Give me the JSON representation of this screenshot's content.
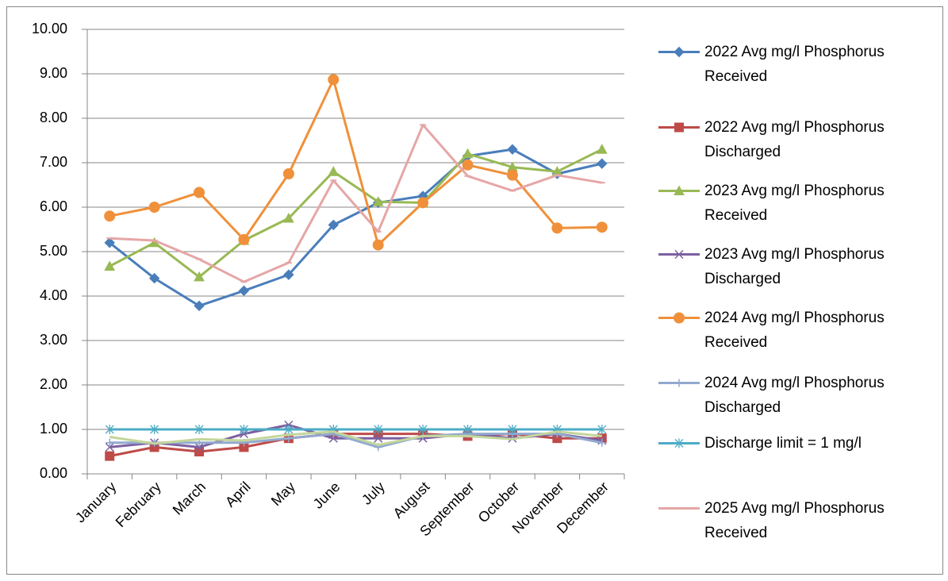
{
  "chart_data": {
    "type": "line",
    "categories": [
      "January",
      "February",
      "March",
      "April",
      "May",
      "June",
      "July",
      "August",
      "September",
      "October",
      "November",
      "December"
    ],
    "ylim": [
      0,
      10
    ],
    "yticks": [
      {
        "value": 0,
        "label": "0.00"
      },
      {
        "value": 1,
        "label": "1.00"
      },
      {
        "value": 2,
        "label": "2.00"
      },
      {
        "value": 3,
        "label": "3.00"
      },
      {
        "value": 4,
        "label": "4.00"
      },
      {
        "value": 5,
        "label": "5.00"
      },
      {
        "value": 6,
        "label": "6.00"
      },
      {
        "value": 7,
        "label": "7.00"
      },
      {
        "value": 8,
        "label": "8.00"
      },
      {
        "value": 9,
        "label": "9.00"
      },
      {
        "value": 10,
        "label": "10.00"
      }
    ],
    "grid": true,
    "legend": "right",
    "series": [
      {
        "name": "2022 Avg mg/l Phosphorus Received",
        "color": "#4a7ebb",
        "marker": "diamond",
        "values": [
          5.2,
          4.4,
          3.78,
          4.12,
          4.48,
          5.6,
          6.1,
          6.25,
          7.15,
          7.3,
          6.75,
          6.98
        ]
      },
      {
        "name": "2022 Avg mg/l Phosphorus Discharged",
        "color": "#be4b48",
        "marker": "square",
        "values": [
          0.4,
          0.6,
          0.5,
          0.6,
          0.8,
          0.9,
          0.9,
          0.9,
          0.85,
          0.9,
          0.8,
          0.8
        ]
      },
      {
        "name": "2023 Avg mg/l Phosphorus Received",
        "color": "#98b954",
        "marker": "triangle",
        "values": [
          4.67,
          5.2,
          4.43,
          5.25,
          5.75,
          6.8,
          6.12,
          6.1,
          7.2,
          6.9,
          6.8,
          7.3
        ]
      },
      {
        "name": "2023 Avg mg/l Phosphorus Discharged",
        "color": "#7d60a0",
        "marker": "x",
        "values": [
          0.6,
          0.7,
          0.6,
          0.9,
          1.1,
          0.8,
          0.8,
          0.8,
          0.9,
          0.8,
          0.9,
          0.75
        ]
      },
      {
        "name": "2024 Avg mg/l Phosphorus Received",
        "color": "#f0903a",
        "marker": "circle",
        "values": [
          5.8,
          6.0,
          6.33,
          5.27,
          6.75,
          8.87,
          5.15,
          6.1,
          6.95,
          6.72,
          5.53,
          5.55
        ]
      },
      {
        "name": "2024 Avg mg/l Phosphorus Discharged",
        "color": "#92a9cf",
        "marker": "plus",
        "values": [
          0.7,
          0.7,
          0.7,
          0.7,
          0.8,
          0.9,
          0.6,
          0.85,
          0.9,
          0.9,
          0.9,
          0.7
        ]
      },
      {
        "name": "Discharge limit = 1 mg/l",
        "color": "#4bacc6",
        "marker": "star",
        "values": [
          1,
          1,
          1,
          1,
          1,
          1,
          1,
          1,
          1,
          1,
          1,
          1
        ]
      },
      {
        "name": "2025 Avg mg/l Phosphorus Received",
        "color": "#e6a6a6",
        "marker": "dash",
        "values": [
          5.3,
          5.25,
          4.83,
          4.32,
          4.75,
          6.6,
          5.45,
          7.85,
          6.7,
          6.37,
          6.72,
          6.55
        ]
      },
      {
        "color": "#c3d69b",
        "marker": "none",
        "values": [
          0.83,
          0.68,
          0.78,
          0.75,
          0.88,
          0.95,
          0.65,
          0.85,
          0.85,
          0.78,
          0.95,
          0.85
        ]
      }
    ]
  }
}
